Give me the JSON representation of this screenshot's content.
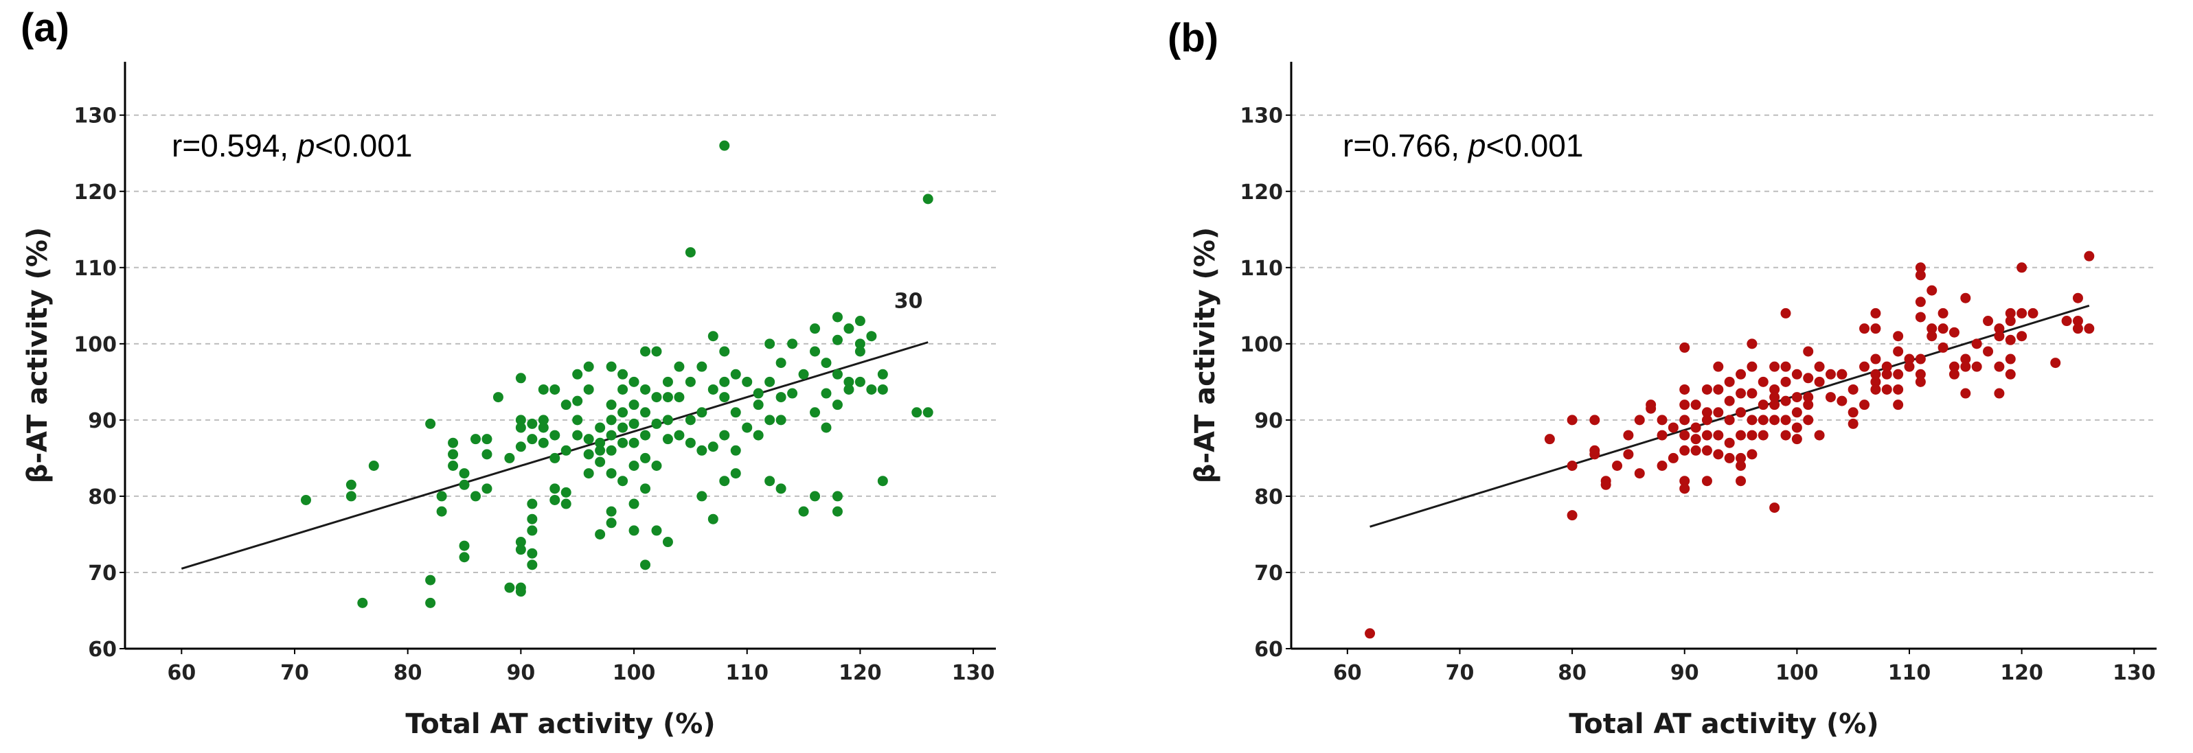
{
  "chart_data": [
    {
      "panel_label": "(a)",
      "type": "scatter",
      "xlabel": "Total AT activity (%)",
      "ylabel": "β-AT activity (%)",
      "xlim": [
        55,
        132
      ],
      "ylim": [
        60,
        137
      ],
      "xticks": [
        60,
        70,
        80,
        90,
        100,
        110,
        120,
        130
      ],
      "yticks": [
        60,
        70,
        80,
        90,
        100,
        110,
        120,
        130
      ],
      "gridlines": [
        70,
        80,
        90,
        100,
        110,
        120,
        130
      ],
      "point_color": "#128a24",
      "stat": {
        "r_text": "r=0.594, ",
        "p_symbol": "p",
        "p_text": "<0.001"
      },
      "annotation": {
        "text": "30",
        "x": 123,
        "y": 102
      },
      "fit_line": {
        "x": [
          60,
          126
        ],
        "y": [
          70.5,
          100.2
        ]
      },
      "points": [
        [
          71,
          79.5
        ],
        [
          75,
          81.5
        ],
        [
          75,
          80
        ],
        [
          76,
          66
        ],
        [
          77,
          84
        ],
        [
          82,
          89.5
        ],
        [
          82,
          69
        ],
        [
          82,
          66
        ],
        [
          83,
          80
        ],
        [
          83,
          78
        ],
        [
          84,
          87
        ],
        [
          84,
          84
        ],
        [
          84,
          85.5
        ],
        [
          85,
          81.5
        ],
        [
          85,
          73.5
        ],
        [
          85,
          72
        ],
        [
          85,
          83
        ],
        [
          86,
          80
        ],
        [
          86,
          87.5
        ],
        [
          87,
          81
        ],
        [
          87,
          87.5
        ],
        [
          87,
          85.5
        ],
        [
          88,
          93
        ],
        [
          89,
          68
        ],
        [
          89,
          85
        ],
        [
          90,
          90
        ],
        [
          90,
          95.5
        ],
        [
          90,
          89
        ],
        [
          90,
          86.5
        ],
        [
          90,
          68
        ],
        [
          90,
          74
        ],
        [
          90,
          73
        ],
        [
          90,
          67.5
        ],
        [
          91,
          87.5
        ],
        [
          91,
          89.5
        ],
        [
          91,
          79
        ],
        [
          91,
          77
        ],
        [
          91,
          75.5
        ],
        [
          91,
          71
        ],
        [
          91,
          72.5
        ],
        [
          92,
          94
        ],
        [
          92,
          90
        ],
        [
          92,
          87
        ],
        [
          92,
          89
        ],
        [
          93,
          94
        ],
        [
          93,
          88
        ],
        [
          93,
          85
        ],
        [
          93,
          81
        ],
        [
          93,
          79.5
        ],
        [
          94,
          92
        ],
        [
          94,
          86
        ],
        [
          94,
          80.5
        ],
        [
          94,
          79
        ],
        [
          95,
          96
        ],
        [
          95,
          92.5
        ],
        [
          95,
          90
        ],
        [
          95,
          88
        ],
        [
          96,
          97
        ],
        [
          96,
          94
        ],
        [
          96,
          87.5
        ],
        [
          96,
          85.5
        ],
        [
          96,
          83
        ],
        [
          97,
          89
        ],
        [
          97,
          87
        ],
        [
          97,
          86
        ],
        [
          97,
          84.5
        ],
        [
          97,
          75
        ],
        [
          98,
          97
        ],
        [
          98,
          92
        ],
        [
          98,
          90
        ],
        [
          98,
          88
        ],
        [
          98,
          86
        ],
        [
          98,
          83
        ],
        [
          98,
          78
        ],
        [
          98,
          76.5
        ],
        [
          99,
          96
        ],
        [
          99,
          94
        ],
        [
          99,
          91
        ],
        [
          99,
          89
        ],
        [
          99,
          87
        ],
        [
          99,
          82
        ],
        [
          100,
          95
        ],
        [
          100,
          92
        ],
        [
          100,
          89.5
        ],
        [
          100,
          87
        ],
        [
          100,
          84
        ],
        [
          100,
          79
        ],
        [
          100,
          75.5
        ],
        [
          101,
          99
        ],
        [
          101,
          94
        ],
        [
          101,
          91
        ],
        [
          101,
          88
        ],
        [
          101,
          85
        ],
        [
          101,
          81
        ],
        [
          101,
          71
        ],
        [
          102,
          99
        ],
        [
          102,
          93
        ],
        [
          102,
          89.5
        ],
        [
          102,
          84
        ],
        [
          102,
          75.5
        ],
        [
          103,
          95
        ],
        [
          103,
          93
        ],
        [
          103,
          90
        ],
        [
          103,
          87.5
        ],
        [
          103,
          74
        ],
        [
          104,
          97
        ],
        [
          104,
          93
        ],
        [
          104,
          88
        ],
        [
          105,
          112
        ],
        [
          105,
          95
        ],
        [
          105,
          90
        ],
        [
          105,
          87
        ],
        [
          106,
          97
        ],
        [
          106,
          91
        ],
        [
          106,
          86
        ],
        [
          106,
          80
        ],
        [
          107,
          101
        ],
        [
          107,
          94
        ],
        [
          107,
          86.5
        ],
        [
          107,
          77
        ],
        [
          108,
          126
        ],
        [
          108,
          99
        ],
        [
          108,
          95
        ],
        [
          108,
          93
        ],
        [
          108,
          82
        ],
        [
          108,
          88
        ],
        [
          109,
          96
        ],
        [
          109,
          91
        ],
        [
          109,
          86
        ],
        [
          109,
          83
        ],
        [
          110,
          95
        ],
        [
          110,
          89
        ],
        [
          111,
          93.5
        ],
        [
          111,
          92
        ],
        [
          111,
          88
        ],
        [
          112,
          82
        ],
        [
          112,
          100
        ],
        [
          112,
          95
        ],
        [
          112,
          90
        ],
        [
          113,
          97.5
        ],
        [
          113,
          93
        ],
        [
          113,
          90
        ],
        [
          113,
          81
        ],
        [
          114,
          93.5
        ],
        [
          114,
          100
        ],
        [
          115,
          78
        ],
        [
          115,
          96
        ],
        [
          116,
          102
        ],
        [
          116,
          99
        ],
        [
          116,
          91
        ],
        [
          116,
          80
        ],
        [
          117,
          97.5
        ],
        [
          117,
          93.5
        ],
        [
          117,
          89
        ],
        [
          118,
          103.5
        ],
        [
          118,
          100.5
        ],
        [
          118,
          96
        ],
        [
          118,
          92
        ],
        [
          118,
          80
        ],
        [
          118,
          78
        ],
        [
          119,
          102
        ],
        [
          119,
          95
        ],
        [
          119,
          94
        ],
        [
          120,
          103
        ],
        [
          120,
          100
        ],
        [
          120,
          99
        ],
        [
          120,
          95
        ],
        [
          121,
          101
        ],
        [
          121,
          94
        ],
        [
          122,
          96
        ],
        [
          122,
          82
        ],
        [
          122,
          94
        ],
        [
          125,
          91
        ],
        [
          126,
          119
        ],
        [
          126,
          91
        ]
      ]
    },
    {
      "panel_label": "(b)",
      "type": "scatter",
      "xlabel": "Total AT activity (%)",
      "ylabel": "β-AT activity (%)",
      "xlim": [
        55,
        132
      ],
      "ylim": [
        60,
        137
      ],
      "xticks": [
        60,
        70,
        80,
        90,
        100,
        110,
        120,
        130
      ],
      "yticks": [
        60,
        70,
        80,
        90,
        100,
        110,
        120,
        130
      ],
      "gridlines": [
        70,
        80,
        90,
        100,
        110,
        120,
        130
      ],
      "point_color": "#b30d0d",
      "stat": {
        "r_text": "r=0.766, ",
        "p_symbol": "p",
        "p_text": "<0.001"
      },
      "fit_line": {
        "x": [
          62,
          126
        ],
        "y": [
          76,
          105
        ]
      },
      "points": [
        [
          62,
          62
        ],
        [
          78,
          87.5
        ],
        [
          80,
          90
        ],
        [
          80,
          84
        ],
        [
          80,
          77.5
        ],
        [
          82,
          90
        ],
        [
          82,
          85.5
        ],
        [
          82,
          86
        ],
        [
          83,
          82
        ],
        [
          83,
          81.5
        ],
        [
          84,
          84
        ],
        [
          85,
          88
        ],
        [
          85,
          85.5
        ],
        [
          86,
          83
        ],
        [
          86,
          90
        ],
        [
          87,
          92
        ],
        [
          87,
          91.5
        ],
        [
          88,
          84
        ],
        [
          88,
          88
        ],
        [
          88,
          90
        ],
        [
          89,
          85
        ],
        [
          89,
          89
        ],
        [
          90,
          99.5
        ],
        [
          90,
          94
        ],
        [
          90,
          92
        ],
        [
          90,
          90
        ],
        [
          90,
          88
        ],
        [
          90,
          86
        ],
        [
          90,
          82
        ],
        [
          90,
          81
        ],
        [
          91,
          92
        ],
        [
          91,
          89
        ],
        [
          91,
          87.5
        ],
        [
          91,
          86
        ],
        [
          92,
          94
        ],
        [
          92,
          91
        ],
        [
          92,
          88
        ],
        [
          92,
          86
        ],
        [
          92,
          82
        ],
        [
          92,
          90
        ],
        [
          93,
          97
        ],
        [
          93,
          94
        ],
        [
          93,
          91
        ],
        [
          93,
          88
        ],
        [
          93,
          85.5
        ],
        [
          94,
          95
        ],
        [
          94,
          92.5
        ],
        [
          94,
          90
        ],
        [
          94,
          87
        ],
        [
          94,
          85
        ],
        [
          95,
          96
        ],
        [
          95,
          93.5
        ],
        [
          95,
          91
        ],
        [
          95,
          88
        ],
        [
          95,
          85
        ],
        [
          95,
          84
        ],
        [
          95,
          82
        ],
        [
          96,
          100
        ],
        [
          96,
          97
        ],
        [
          96,
          93.5
        ],
        [
          96,
          90
        ],
        [
          96,
          88
        ],
        [
          96,
          85.5
        ],
        [
          97,
          95
        ],
        [
          97,
          92
        ],
        [
          97,
          90
        ],
        [
          97,
          88
        ],
        [
          98,
          97
        ],
        [
          98,
          94
        ],
        [
          98,
          92
        ],
        [
          98,
          90
        ],
        [
          98,
          78.5
        ],
        [
          98,
          93
        ],
        [
          99,
          104
        ],
        [
          99,
          97
        ],
        [
          99,
          95
        ],
        [
          99,
          92.5
        ],
        [
          99,
          90
        ],
        [
          99,
          88
        ],
        [
          100,
          96
        ],
        [
          100,
          93
        ],
        [
          100,
          91
        ],
        [
          100,
          89
        ],
        [
          100,
          87.5
        ],
        [
          101,
          99
        ],
        [
          101,
          95.5
        ],
        [
          101,
          92
        ],
        [
          101,
          90
        ],
        [
          101,
          93
        ],
        [
          102,
          97
        ],
        [
          102,
          95
        ],
        [
          102,
          88
        ],
        [
          103,
          96
        ],
        [
          103,
          93
        ],
        [
          104,
          96
        ],
        [
          104,
          92.5
        ],
        [
          104,
          96
        ],
        [
          105,
          91
        ],
        [
          105,
          94
        ],
        [
          105,
          89.5
        ],
        [
          106,
          97
        ],
        [
          106,
          102
        ],
        [
          106,
          92
        ],
        [
          107,
          104
        ],
        [
          107,
          102
        ],
        [
          107,
          98
        ],
        [
          107,
          96
        ],
        [
          107,
          95
        ],
        [
          107,
          94
        ],
        [
          108,
          97
        ],
        [
          108,
          96
        ],
        [
          108,
          94
        ],
        [
          109,
          101
        ],
        [
          109,
          99
        ],
        [
          109,
          96
        ],
        [
          109,
          94
        ],
        [
          109,
          92
        ],
        [
          110,
          98
        ],
        [
          110,
          97
        ],
        [
          111,
          110
        ],
        [
          111,
          109
        ],
        [
          111,
          105.5
        ],
        [
          111,
          103.5
        ],
        [
          111,
          98
        ],
        [
          111,
          96
        ],
        [
          111,
          95
        ],
        [
          112,
          107
        ],
        [
          112,
          102
        ],
        [
          112,
          101
        ],
        [
          113,
          104
        ],
        [
          113,
          102
        ],
        [
          113,
          99.5
        ],
        [
          114,
          101.5
        ],
        [
          114,
          97
        ],
        [
          114,
          96
        ],
        [
          115,
          106
        ],
        [
          115,
          98
        ],
        [
          115,
          97
        ],
        [
          115,
          93.5
        ],
        [
          116,
          100
        ],
        [
          116,
          97
        ],
        [
          117,
          103
        ],
        [
          117,
          99
        ],
        [
          118,
          102
        ],
        [
          118,
          101
        ],
        [
          118,
          97
        ],
        [
          118,
          93.5
        ],
        [
          119,
          104
        ],
        [
          119,
          103
        ],
        [
          119,
          100.5
        ],
        [
          119,
          98
        ],
        [
          119,
          96
        ],
        [
          120,
          110
        ],
        [
          120,
          104
        ],
        [
          120,
          101
        ],
        [
          121,
          104
        ],
        [
          123,
          97.5
        ],
        [
          124,
          103
        ],
        [
          125,
          106
        ],
        [
          125,
          103
        ],
        [
          125,
          102
        ],
        [
          126,
          111.5
        ],
        [
          126,
          102
        ]
      ]
    }
  ]
}
